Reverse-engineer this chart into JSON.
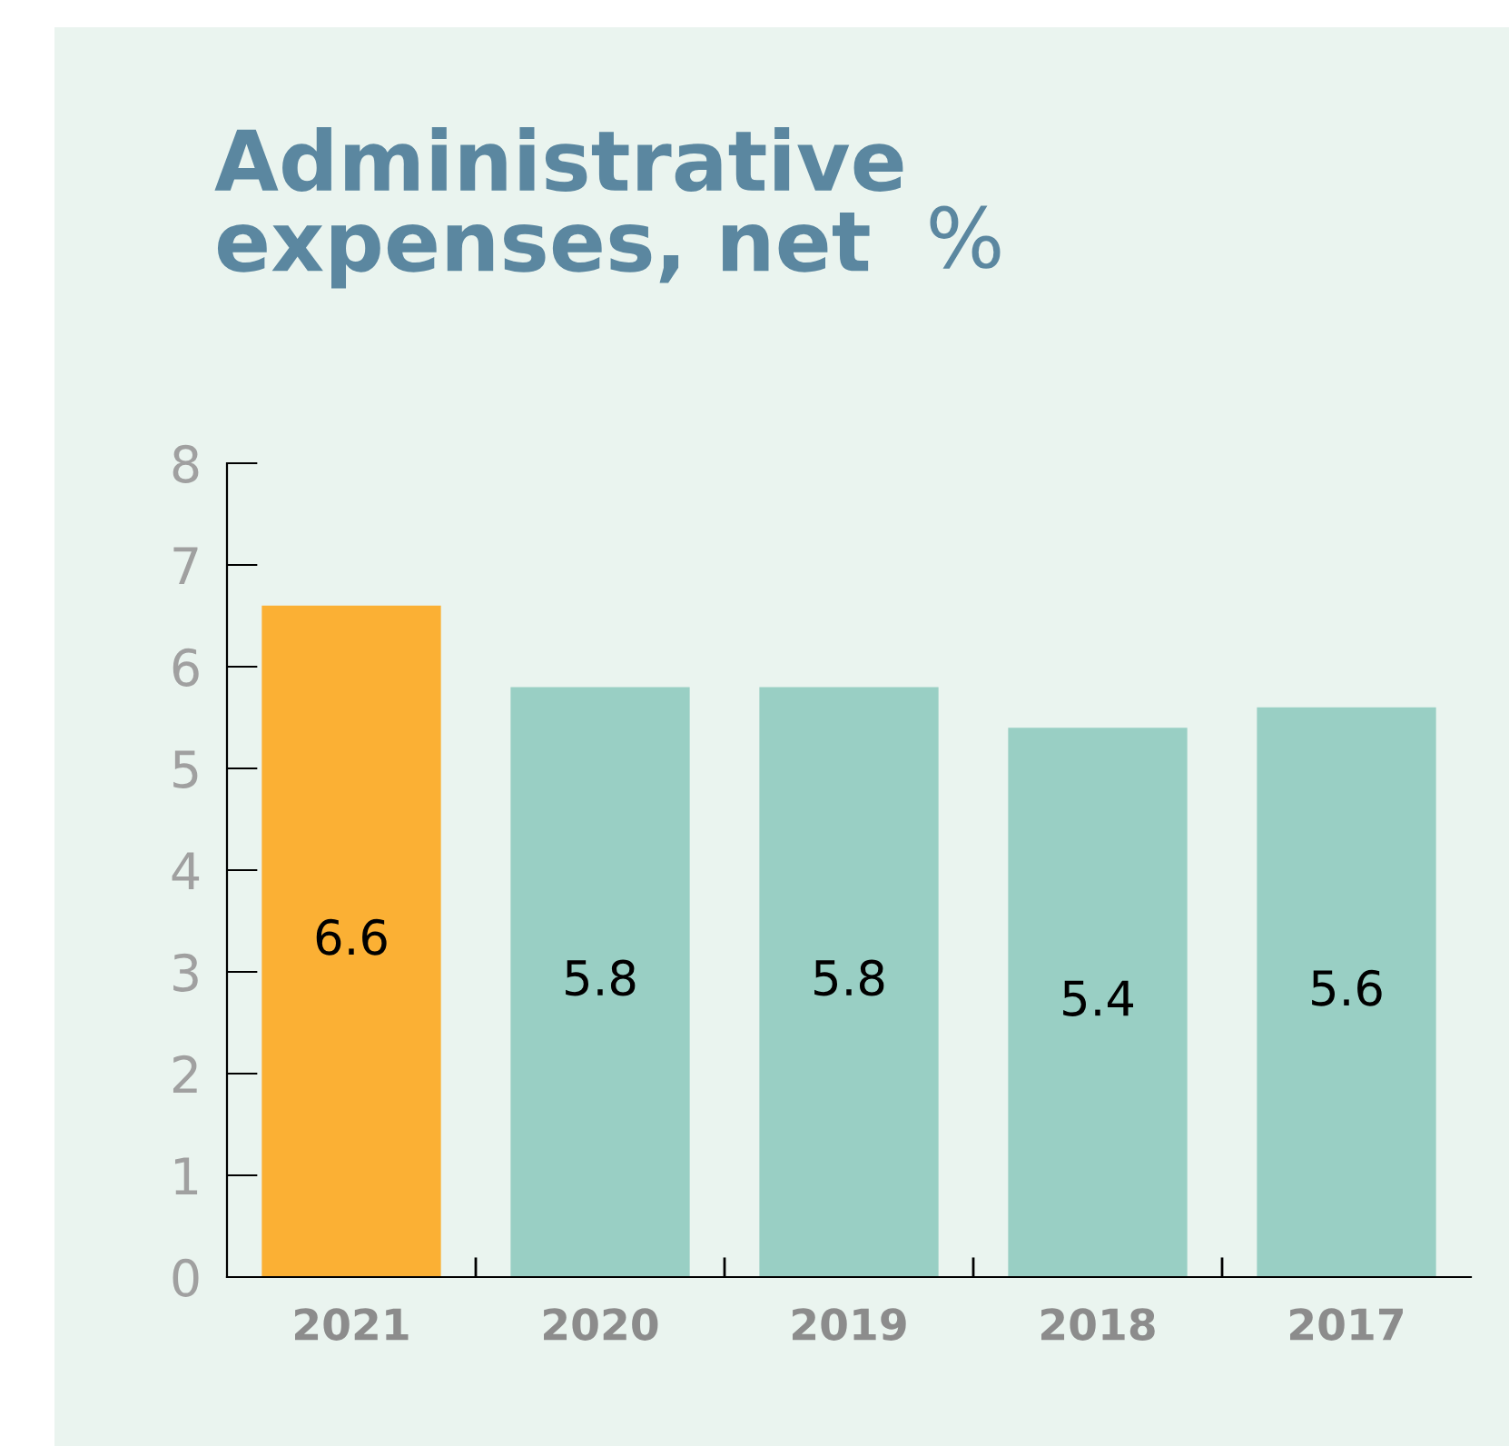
{
  "chart_data": {
    "type": "bar",
    "title": "Administrative expenses, net",
    "ylabel": "%",
    "categories": [
      "2021",
      "2020",
      "2019",
      "2018",
      "2017"
    ],
    "values": [
      6.6,
      5.8,
      5.8,
      5.4,
      5.6
    ],
    "colors": [
      "#fbb034",
      "#99cfc4",
      "#99cfc4",
      "#99cfc4",
      "#99cfc4"
    ],
    "ylim": [
      0,
      8
    ],
    "yticks": [
      0,
      1,
      2,
      3,
      4,
      5,
      6,
      7,
      8
    ],
    "data_labels": true,
    "grid": false,
    "legend": false
  }
}
